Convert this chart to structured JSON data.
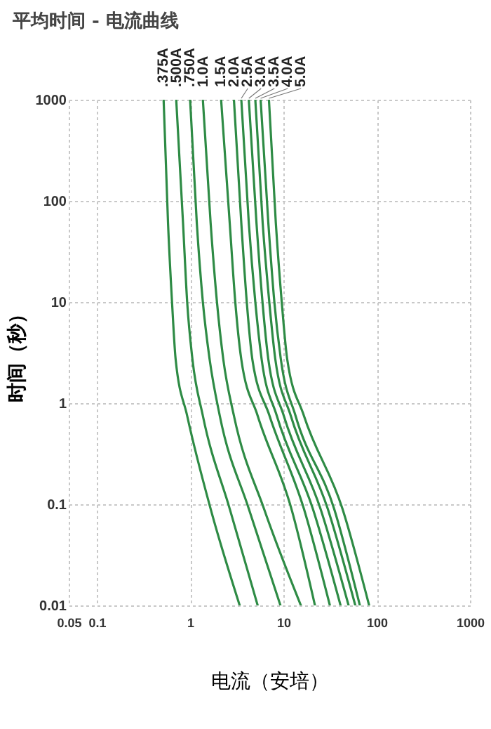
{
  "chart_data": {
    "type": "line",
    "title": "平均时间 - 电流曲线",
    "xlabel": "电流（安培）",
    "ylabel": "时间（秒）",
    "log": "xy",
    "xlim": [
      0.05,
      1000
    ],
    "xticks": [
      0.05,
      0.1,
      1,
      10,
      100,
      1000
    ],
    "ylim": [
      0.01,
      1000
    ],
    "yticks": [
      0.01,
      0.1,
      1,
      10,
      100,
      1000
    ],
    "grid": true,
    "legend": false,
    "line_style": "solid",
    "marker": "none",
    "series": [
      {
        "name": ".375A",
        "color": "#2e8b45",
        "x": [
          0.52,
          0.58,
          0.64,
          0.7,
          0.93,
          1.66,
          3.4
        ],
        "values": [
          1000,
          60,
          10,
          2.7,
          0.75,
          0.09,
          0.01
        ]
      },
      {
        "name": ".500A",
        "color": "#2e8b45",
        "x": [
          0.71,
          0.84,
          0.93,
          1.06,
          1.37,
          2.66,
          5.3
        ],
        "values": [
          1000,
          60,
          10,
          2.7,
          0.75,
          0.09,
          0.01
        ]
      },
      {
        "name": ".750A",
        "color": "#2e8b45",
        "x": [
          1.0,
          1.18,
          1.37,
          1.62,
          2.08,
          4.26,
          9.3
        ],
        "values": [
          1000,
          60,
          10,
          2.7,
          0.75,
          0.09,
          0.01
        ]
      },
      {
        "name": "1.0A",
        "color": "#2e8b45",
        "x": [
          1.37,
          1.66,
          1.94,
          2.27,
          2.95,
          6.2,
          15.4
        ],
        "values": [
          1000,
          60,
          10,
          2.7,
          0.75,
          0.09,
          0.01
        ]
      },
      {
        "name": "1.5A",
        "color": "#2e8b45",
        "x": [
          2.15,
          2.66,
          3.05,
          3.54,
          5.3,
          12.2,
          21.8
        ],
        "values": [
          1000,
          60,
          10,
          2.7,
          0.75,
          0.09,
          0.01
        ]
      },
      {
        "name": "2.0A",
        "color": "#2e8b45",
        "x": [
          2.95,
          3.54,
          4.05,
          4.65,
          7.1,
          16.6,
          31.5
        ],
        "values": [
          1000,
          60,
          10,
          2.7,
          0.75,
          0.09,
          0.01
        ]
      },
      {
        "name": "2.5A",
        "color": "#2e8b45",
        "x": [
          3.54,
          4.26,
          5.0,
          5.85,
          8.5,
          20.7,
          41
        ],
        "values": [
          1000,
          60,
          10,
          2.7,
          0.75,
          0.09,
          0.01
        ]
      },
      {
        "name": "3.0A",
        "color": "#2e8b45",
        "x": [
          4.26,
          5.15,
          5.97,
          6.9,
          10.1,
          25,
          50
        ],
        "values": [
          1000,
          60,
          10,
          2.7,
          0.75,
          0.09,
          0.01
        ]
      },
      {
        "name": "3.5A",
        "color": "#2e8b45",
        "x": [
          5.0,
          6.0,
          7.06,
          8.2,
          12,
          29.9,
          59
        ],
        "values": [
          1000,
          60,
          10,
          2.7,
          0.75,
          0.09,
          0.01
        ]
      },
      {
        "name": "4.0A",
        "color": "#2e8b45",
        "x": [
          5.7,
          6.9,
          8.0,
          9.4,
          13.5,
          35,
          66
        ],
        "values": [
          1000,
          60,
          10,
          2.7,
          0.75,
          0.09,
          0.01
        ]
      },
      {
        "name": "5.0A",
        "color": "#2e8b45",
        "x": [
          7.0,
          8.3,
          9.6,
          11.0,
          16.6,
          43,
          83
        ],
        "values": [
          1000,
          60,
          10,
          2.7,
          0.75,
          0.09,
          0.01
        ]
      }
    ]
  }
}
